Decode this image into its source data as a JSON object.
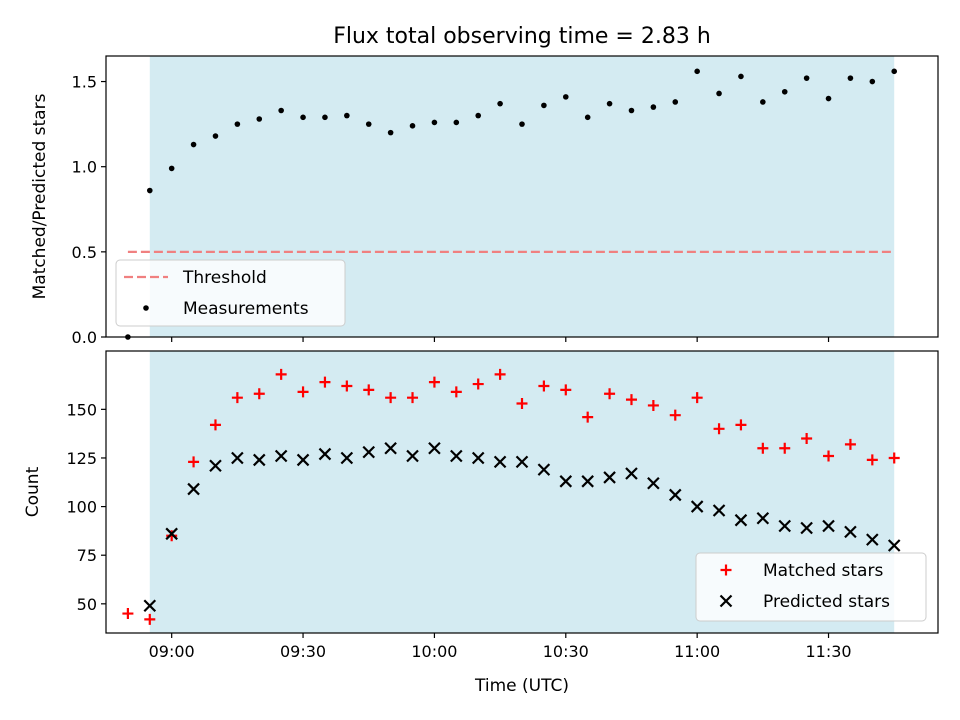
{
  "chart_data": [
    {
      "type": "scatter",
      "title": "Flux total observing time = 2.83 h",
      "xlabel": "",
      "ylabel": "Matched/Predicted stars",
      "x_ticks": [
        "09:00",
        "09:30",
        "10:00",
        "10:30",
        "11:00",
        "11:30"
      ],
      "xlim": [
        "08:45",
        "11:55"
      ],
      "ylim": [
        0,
        1.65
      ],
      "y_ticks": [
        "0.0",
        "0.5",
        "1.0",
        "1.5"
      ],
      "shaded_span": [
        "08:55",
        "11:45"
      ],
      "threshold": {
        "name": "Threshold",
        "y": 0.5,
        "x_range": [
          "08:50",
          "11:45"
        ],
        "color": "#f08080",
        "style": "dashed"
      },
      "legend": {
        "position": "lower-left",
        "entries": [
          "Threshold",
          "Measurements"
        ]
      },
      "series": [
        {
          "name": "Measurements",
          "marker": "dot",
          "color": "#000000",
          "points": [
            [
              "08:50",
              0.0
            ],
            [
              "08:55",
              0.86
            ],
            [
              "09:00",
              0.99
            ],
            [
              "09:05",
              1.13
            ],
            [
              "09:10",
              1.18
            ],
            [
              "09:15",
              1.25
            ],
            [
              "09:20",
              1.28
            ],
            [
              "09:25",
              1.33
            ],
            [
              "09:30",
              1.29
            ],
            [
              "09:35",
              1.29
            ],
            [
              "09:40",
              1.3
            ],
            [
              "09:45",
              1.25
            ],
            [
              "09:50",
              1.2
            ],
            [
              "09:55",
              1.24
            ],
            [
              "10:00",
              1.26
            ],
            [
              "10:05",
              1.26
            ],
            [
              "10:10",
              1.3
            ],
            [
              "10:15",
              1.37
            ],
            [
              "10:20",
              1.25
            ],
            [
              "10:25",
              1.36
            ],
            [
              "10:30",
              1.41
            ],
            [
              "10:35",
              1.29
            ],
            [
              "10:40",
              1.37
            ],
            [
              "10:45",
              1.33
            ],
            [
              "10:50",
              1.35
            ],
            [
              "10:55",
              1.38
            ],
            [
              "11:00",
              1.56
            ],
            [
              "11:05",
              1.43
            ],
            [
              "11:10",
              1.53
            ],
            [
              "11:15",
              1.38
            ],
            [
              "11:20",
              1.44
            ],
            [
              "11:25",
              1.52
            ],
            [
              "11:30",
              1.4
            ],
            [
              "11:35",
              1.52
            ],
            [
              "11:40",
              1.5
            ],
            [
              "11:45",
              1.56
            ]
          ]
        }
      ]
    },
    {
      "type": "scatter",
      "title": "",
      "xlabel": "Time (UTC)",
      "ylabel": "Count",
      "x_ticks": [
        "09:00",
        "09:30",
        "10:00",
        "10:30",
        "11:00",
        "11:30"
      ],
      "xlim": [
        "08:45",
        "11:55"
      ],
      "ylim": [
        35,
        180
      ],
      "y_ticks": [
        "50",
        "75",
        "100",
        "125",
        "150"
      ],
      "shaded_span": [
        "08:55",
        "11:45"
      ],
      "legend": {
        "position": "lower-right",
        "entries": [
          "Matched stars",
          "Predicted stars"
        ]
      },
      "series": [
        {
          "name": "Matched stars",
          "marker": "plus",
          "color": "#ff0000",
          "points": [
            [
              "08:50",
              45
            ],
            [
              "08:55",
              42
            ],
            [
              "09:00",
              85
            ],
            [
              "09:05",
              123
            ],
            [
              "09:10",
              142
            ],
            [
              "09:15",
              156
            ],
            [
              "09:20",
              158
            ],
            [
              "09:25",
              168
            ],
            [
              "09:30",
              159
            ],
            [
              "09:35",
              164
            ],
            [
              "09:40",
              162
            ],
            [
              "09:45",
              160
            ],
            [
              "09:50",
              156
            ],
            [
              "09:55",
              156
            ],
            [
              "10:00",
              164
            ],
            [
              "10:05",
              159
            ],
            [
              "10:10",
              163
            ],
            [
              "10:15",
              168
            ],
            [
              "10:20",
              153
            ],
            [
              "10:25",
              162
            ],
            [
              "10:30",
              160
            ],
            [
              "10:35",
              146
            ],
            [
              "10:40",
              158
            ],
            [
              "10:45",
              155
            ],
            [
              "10:50",
              152
            ],
            [
              "10:55",
              147
            ],
            [
              "11:00",
              156
            ],
            [
              "11:05",
              140
            ],
            [
              "11:10",
              142
            ],
            [
              "11:15",
              130
            ],
            [
              "11:20",
              130
            ],
            [
              "11:25",
              135
            ],
            [
              "11:30",
              126
            ],
            [
              "11:35",
              132
            ],
            [
              "11:40",
              124
            ],
            [
              "11:45",
              125
            ]
          ]
        },
        {
          "name": "Predicted stars",
          "marker": "x",
          "color": "#000000",
          "points": [
            [
              "08:55",
              49
            ],
            [
              "09:00",
              86
            ],
            [
              "09:05",
              109
            ],
            [
              "09:10",
              121
            ],
            [
              "09:15",
              125
            ],
            [
              "09:20",
              124
            ],
            [
              "09:25",
              126
            ],
            [
              "09:30",
              124
            ],
            [
              "09:35",
              127
            ],
            [
              "09:40",
              125
            ],
            [
              "09:45",
              128
            ],
            [
              "09:50",
              130
            ],
            [
              "09:55",
              126
            ],
            [
              "10:00",
              130
            ],
            [
              "10:05",
              126
            ],
            [
              "10:10",
              125
            ],
            [
              "10:15",
              123
            ],
            [
              "10:20",
              123
            ],
            [
              "10:25",
              119
            ],
            [
              "10:30",
              113
            ],
            [
              "10:35",
              113
            ],
            [
              "10:40",
              115
            ],
            [
              "10:45",
              117
            ],
            [
              "10:50",
              112
            ],
            [
              "10:55",
              106
            ],
            [
              "11:00",
              100
            ],
            [
              "11:05",
              98
            ],
            [
              "11:10",
              93
            ],
            [
              "11:15",
              94
            ],
            [
              "11:20",
              90
            ],
            [
              "11:25",
              89
            ],
            [
              "11:30",
              90
            ],
            [
              "11:35",
              87
            ],
            [
              "11:40",
              83
            ],
            [
              "11:45",
              80
            ]
          ]
        }
      ]
    }
  ],
  "colors": {
    "shading": "#add8e6",
    "axes": "#000000"
  }
}
